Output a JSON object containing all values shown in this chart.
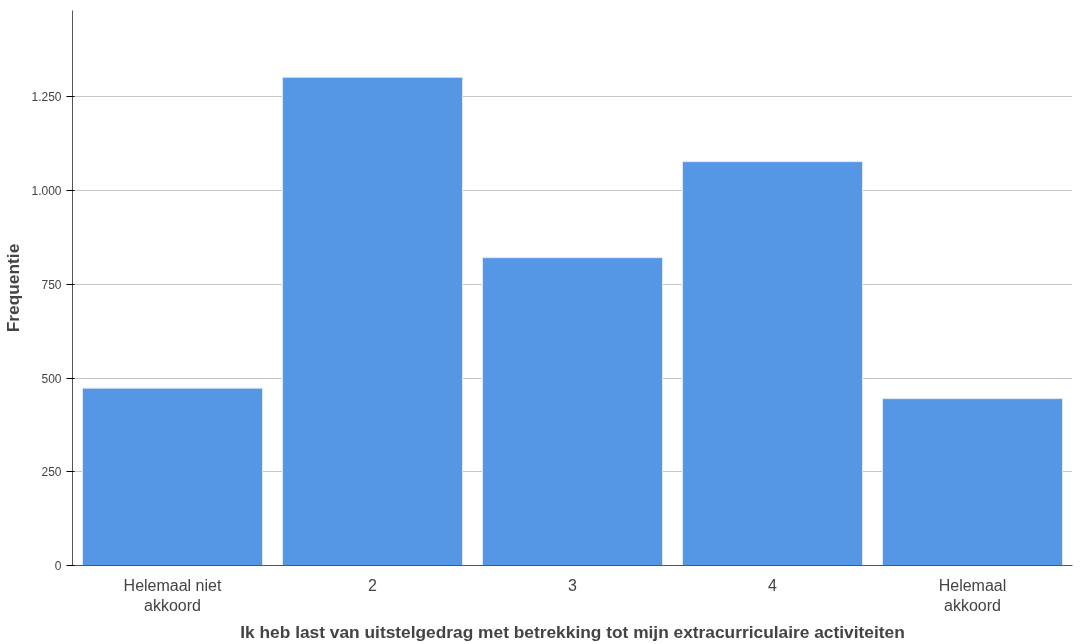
{
  "chart_data": {
    "type": "bar",
    "xlabel": "Ik heb last van uitstelgedrag met betrekking tot mijn extracurriculaire activiteiten",
    "ylabel": "Frequentie",
    "categories": [
      "Helemaal niet akkoord",
      "2",
      "3",
      "4",
      "Helemaal akkoord"
    ],
    "values": [
      473,
      1302,
      821,
      1077,
      445
    ],
    "color": "#5596e5",
    "ylim": [
      0,
      1480
    ],
    "yticks": [
      0,
      250,
      500,
      750,
      {
        "value": 1000,
        "label": "1.000"
      },
      {
        "value": 1250,
        "label": "1.250"
      }
    ],
    "grid": "y"
  }
}
